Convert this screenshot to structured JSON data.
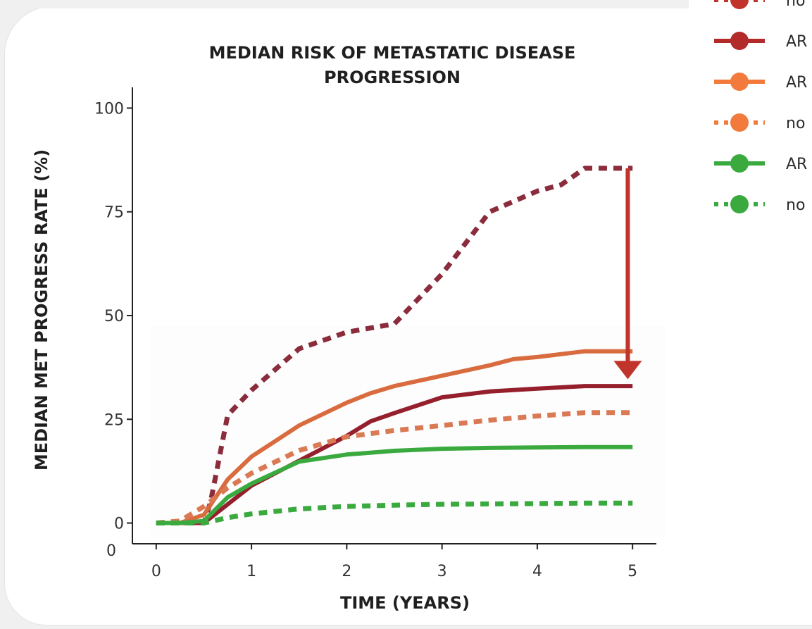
{
  "chart_data": {
    "type": "line",
    "title": [
      "MEDIAN RISK OF METASTATIC DISEASE",
      "PROGRESSION"
    ],
    "xlabel": "TIME (YEARS)",
    "ylabel": "MEDIAN MET PROGRESS RATE (%)",
    "xlim": [
      -0.25,
      5.25
    ],
    "ylim": [
      -5,
      105
    ],
    "x_ticks": [
      "0",
      "1",
      "2",
      "3",
      "4",
      "5"
    ],
    "x_tick_values": [
      0,
      1,
      2,
      3,
      4,
      5
    ],
    "y_ticks": [
      "0",
      "25",
      "50",
      "75",
      "100"
    ],
    "y_tick_values": [
      0,
      25,
      50,
      75,
      100
    ],
    "y_origin_label": "0",
    "grid": false,
    "legend_position": "top-right",
    "series": [
      {
        "name": "no",
        "color": "#8a2c3c",
        "style": "dotted",
        "x": [
          0,
          0.25,
          0.5,
          0.57,
          0.75,
          1.0,
          1.5,
          2.0,
          2.25,
          2.5,
          3.0,
          3.5,
          4.0,
          4.25,
          4.5,
          5.0
        ],
        "y": [
          0,
          0,
          0,
          5,
          26,
          32,
          42,
          46,
          47,
          48,
          60,
          75,
          80,
          81.5,
          85.5,
          85.5
        ]
      },
      {
        "name": "AR",
        "color": "#951f2c",
        "style": "solid",
        "x": [
          0,
          0.25,
          0.5,
          0.75,
          1.0,
          1.5,
          2.0,
          2.25,
          2.5,
          3.0,
          3.5,
          4.0,
          4.5,
          5.0
        ],
        "y": [
          0,
          0,
          0,
          4.5,
          9,
          15,
          21,
          24.5,
          26.5,
          30.3,
          31.7,
          32.4,
          33.0,
          33.0
        ]
      },
      {
        "name": "AR",
        "color": "#d96c3e",
        "style": "solid",
        "x": [
          0,
          0.25,
          0.5,
          0.75,
          1.0,
          1.5,
          2.0,
          2.25,
          2.5,
          3.0,
          3.5,
          3.75,
          4.0,
          4.5,
          5.0
        ],
        "y": [
          0,
          0,
          2,
          10.5,
          16,
          23.5,
          29,
          31.3,
          33,
          35.5,
          38,
          39.5,
          40,
          41.4,
          41.4
        ]
      },
      {
        "name": "no",
        "color": "#d97a55",
        "style": "dotted",
        "x": [
          0,
          0.25,
          0.5,
          0.75,
          1.0,
          1.5,
          2.0,
          2.5,
          3.0,
          3.5,
          4.0,
          4.5,
          5.0
        ],
        "y": [
          0,
          0.5,
          4,
          8.5,
          12,
          17.5,
          20.8,
          22.3,
          23.5,
          24.8,
          25.8,
          26.6,
          26.6
        ]
      },
      {
        "name": "AR",
        "color": "#3aaa3f",
        "style": "solid",
        "x": [
          0,
          0.25,
          0.5,
          0.75,
          1.0,
          1.5,
          2.0,
          2.5,
          3.0,
          3.5,
          4.0,
          4.5,
          5.0
        ],
        "y": [
          0,
          0,
          0.5,
          6.2,
          9.5,
          14.8,
          16.5,
          17.4,
          17.9,
          18.1,
          18.2,
          18.3,
          18.3
        ]
      },
      {
        "name": "no",
        "color": "#3aaa3f",
        "style": "dotted",
        "x": [
          0,
          0.25,
          0.5,
          0.75,
          1.0,
          1.5,
          2.0,
          2.5,
          3.0,
          3.5,
          4.0,
          4.5,
          5.0
        ],
        "y": [
          0,
          0,
          0,
          1.3,
          2.2,
          3.4,
          4.0,
          4.3,
          4.5,
          4.6,
          4.7,
          4.8,
          4.8
        ]
      }
    ],
    "annotations": [
      {
        "type": "arrow",
        "color": "#c0342b",
        "x": 4.95,
        "y_from": 85.5,
        "y_to": 35
      }
    ],
    "legend": [
      {
        "label": "no",
        "color": "#c0342b",
        "style": "dotted"
      },
      {
        "label": "AR",
        "color": "#b32a2a",
        "style": "solid"
      },
      {
        "label": "AR",
        "color": "#f27a3c",
        "style": "solid"
      },
      {
        "label": "no",
        "color": "#f27a3c",
        "style": "dotted"
      },
      {
        "label": "AR",
        "color": "#3aaa3f",
        "style": "solid"
      },
      {
        "label": "no",
        "color": "#3aaa3f",
        "style": "dotted"
      }
    ]
  }
}
